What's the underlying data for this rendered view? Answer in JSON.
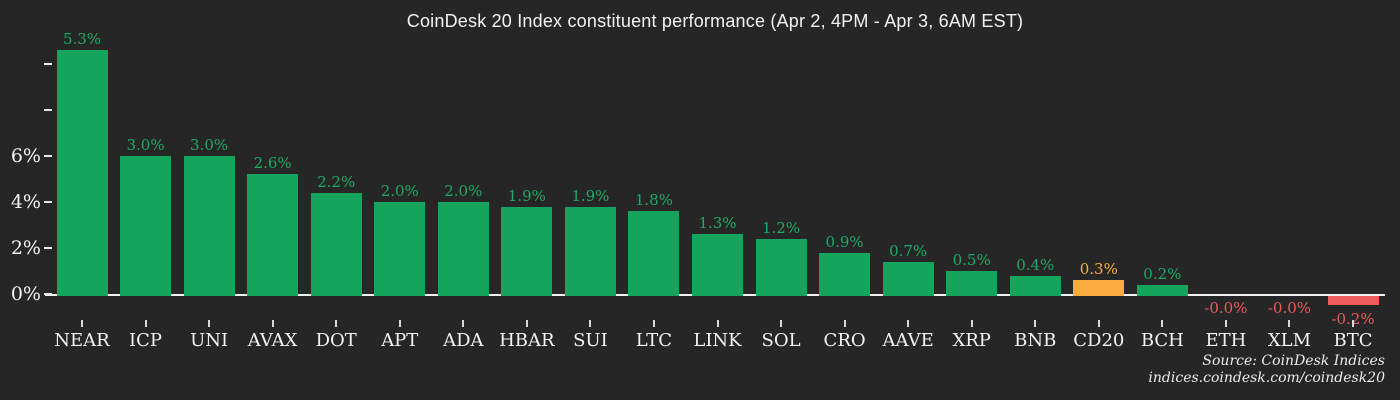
{
  "title": "CoinDesk 20 Index constituent performance (Apr 2, 4PM - Apr 3, 6AM EST)",
  "source": {
    "line1": "Source: CoinDesk Indices",
    "line2": "indices.coindesk.com/coindesk20"
  },
  "colors": {
    "background": "#262626",
    "green": "#14a45c",
    "green_label": "#1dab64",
    "orange": "#fbad3f",
    "red": "#ee5b5b",
    "text": "#f2f2f2",
    "axis": "#f0f0f0"
  },
  "chart_data": {
    "type": "bar",
    "title": "CoinDesk 20 Index constituent performance (Apr 2, 4PM - Apr 3, 6AM EST)",
    "categories": [
      "NEAR",
      "ICP",
      "UNI",
      "AVAX",
      "DOT",
      "APT",
      "ADA",
      "HBAR",
      "SUI",
      "LTC",
      "LINK",
      "SOL",
      "CRO",
      "AAVE",
      "XRP",
      "BNB",
      "CD20",
      "BCH",
      "ETH",
      "XLM",
      "BTC"
    ],
    "values": [
      5.3,
      3.0,
      3.0,
      2.6,
      2.2,
      2.0,
      2.0,
      1.9,
      1.9,
      1.8,
      1.3,
      1.2,
      0.9,
      0.7,
      0.5,
      0.4,
      0.3,
      0.2,
      -0.0,
      -0.0,
      -0.2
    ],
    "value_labels": [
      "5.3%",
      "3.0%",
      "3.0%",
      "2.6%",
      "2.2%",
      "2.0%",
      "2.0%",
      "1.9%",
      "1.9%",
      "1.8%",
      "1.3%",
      "1.2%",
      "0.9%",
      "0.7%",
      "0.5%",
      "0.4%",
      "0.3%",
      "0.2%",
      "-0.0%",
      "-0.0%",
      "-0.2%"
    ],
    "bar_color_keys": [
      "green",
      "green",
      "green",
      "green",
      "green",
      "green",
      "green",
      "green",
      "green",
      "green",
      "green",
      "green",
      "green",
      "green",
      "green",
      "green",
      "orange",
      "green",
      "red",
      "red",
      "red"
    ],
    "highlight_category": "CD20",
    "yticklabels": [
      "0%",
      "2%",
      "4%",
      "6%",
      "",
      ""
    ],
    "xlabel": "",
    "ylabel": "",
    "grid": false,
    "legend": false
  }
}
